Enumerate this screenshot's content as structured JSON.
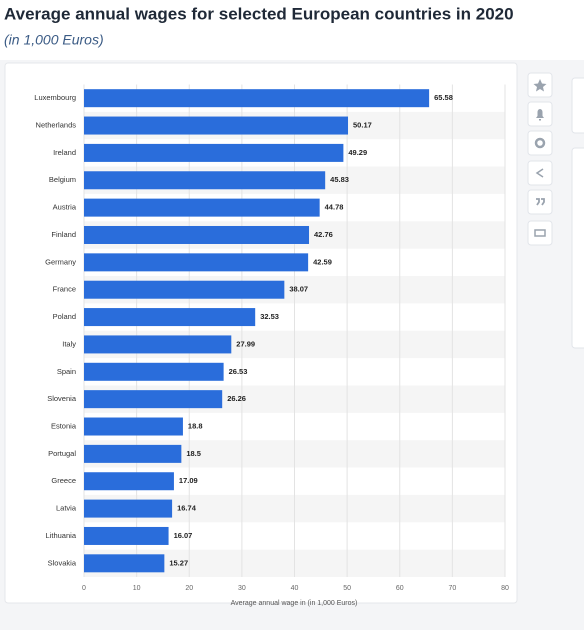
{
  "chart_data": {
    "type": "bar",
    "orientation": "horizontal",
    "title": "Average annual wages for selected European countries in 2020",
    "subtitle": "(in 1,000 Euros)",
    "x_label": "Average annual wage in (in 1,000 Euros)",
    "categories": [
      "Luxembourg",
      "Netherlands",
      "Ireland",
      "Belgium",
      "Austria",
      "Finland",
      "Germany",
      "France",
      "Poland",
      "Italy",
      "Spain",
      "Slovenia",
      "Estonia",
      "Portugal",
      "Greece",
      "Latvia",
      "Lithuania",
      "Slovakia"
    ],
    "values": [
      65.58,
      50.17,
      49.29,
      45.83,
      44.78,
      42.76,
      42.59,
      38.07,
      32.53,
      27.99,
      26.53,
      26.26,
      18.8,
      18.5,
      17.09,
      16.74,
      16.07,
      15.27
    ],
    "color": "#2a6ddb",
    "xlim": [
      0,
      80
    ],
    "xticks": [
      0,
      10,
      20,
      30,
      40,
      50,
      60,
      70,
      80
    ],
    "grid": true
  }
}
